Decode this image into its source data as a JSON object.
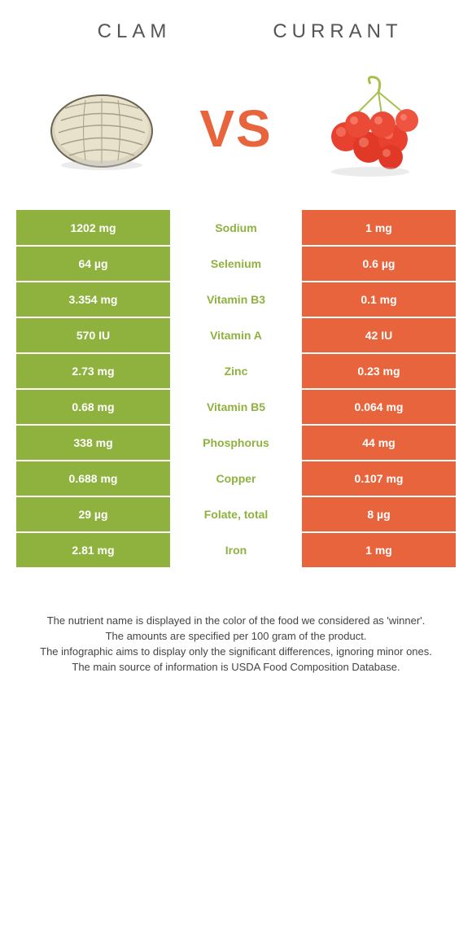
{
  "header": {
    "left_title": "CLAM",
    "right_title": "CURRANT",
    "vs": "VS"
  },
  "colors": {
    "green": "#8fb23f",
    "orange": "#e8643c",
    "white": "#ffffff"
  },
  "rows": [
    {
      "left": "1202 mg",
      "label": "Sodium",
      "right": "1 mg",
      "winner": "left"
    },
    {
      "left": "64 µg",
      "label": "Selenium",
      "right": "0.6 µg",
      "winner": "left"
    },
    {
      "left": "3.354 mg",
      "label": "Vitamin B3",
      "right": "0.1 mg",
      "winner": "left"
    },
    {
      "left": "570 IU",
      "label": "Vitamin A",
      "right": "42 IU",
      "winner": "left"
    },
    {
      "left": "2.73 mg",
      "label": "Zinc",
      "right": "0.23 mg",
      "winner": "left"
    },
    {
      "left": "0.68 mg",
      "label": "Vitamin B5",
      "right": "0.064 mg",
      "winner": "left"
    },
    {
      "left": "338 mg",
      "label": "Phosphorus",
      "right": "44 mg",
      "winner": "left"
    },
    {
      "left": "0.688 mg",
      "label": "Copper",
      "right": "0.107 mg",
      "winner": "left"
    },
    {
      "left": "29 µg",
      "label": "Folate, total",
      "right": "8 µg",
      "winner": "left"
    },
    {
      "left": "2.81 mg",
      "label": "Iron",
      "right": "1 mg",
      "winner": "left"
    }
  ],
  "footer": {
    "line1": "The nutrient name is displayed in the color of the food we considered as 'winner'.",
    "line2": "The amounts are specified per 100 gram of the product.",
    "line3": "The infographic aims to display only the significant differences, ignoring minor ones.",
    "line4": "The main source of information is USDA Food Composition Database."
  }
}
